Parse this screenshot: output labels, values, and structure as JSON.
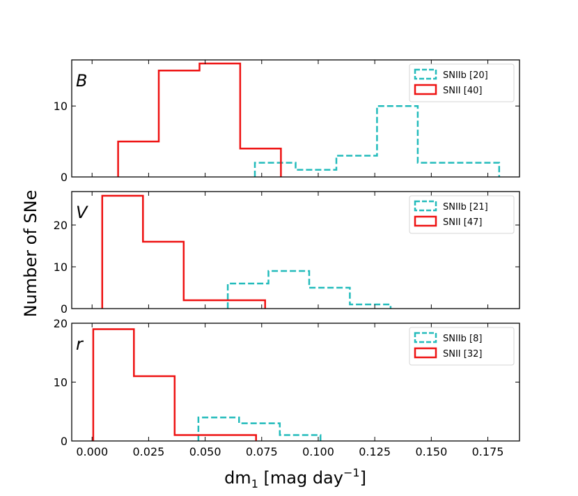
{
  "chart_data": {
    "type": "histogram",
    "xlabel_main": "dm",
    "xlabel_sub": "1",
    "xlabel_unit": " [mag day",
    "xlabel_exp": "−1",
    "xlabel_close": "]",
    "ylabel": "Number of SNe",
    "xlim": [
      -0.009,
      0.189
    ],
    "xticks": [
      0.0,
      0.025,
      0.05,
      0.075,
      0.1,
      0.125,
      0.15,
      0.175
    ],
    "xtick_labels": [
      "0.000",
      "0.025",
      "0.050",
      "0.075",
      "0.100",
      "0.125",
      "0.150",
      "0.175"
    ],
    "colors": {
      "snii": "#ee1111",
      "sniib": "#22bbbb"
    },
    "panels": [
      {
        "band": "B",
        "ylim": [
          0,
          16.5
        ],
        "yticks": [
          0,
          10
        ],
        "ytick_labels": [
          "0",
          "10"
        ],
        "legend_position": "top-right",
        "series": [
          {
            "name": "SNIIb [20]",
            "style": "dashed",
            "color_key": "sniib",
            "edges": [
              0.072,
              0.09,
              0.108,
              0.126,
              0.144,
              0.162,
              0.18
            ],
            "counts": [
              2,
              1,
              3,
              10,
              2,
              2
            ]
          },
          {
            "name": "SNII [40]",
            "style": "solid",
            "color_key": "snii",
            "edges": [
              0.0115,
              0.0295,
              0.0475,
              0.0655,
              0.0835
            ],
            "counts": [
              5,
              15,
              16,
              4
            ]
          }
        ]
      },
      {
        "band": "V",
        "ylim": [
          0,
          28
        ],
        "yticks": [
          0,
          10,
          20
        ],
        "ytick_labels": [
          "0",
          "10",
          "20"
        ],
        "legend_position": "top-right",
        "series": [
          {
            "name": "SNIIb [21]",
            "style": "dashed",
            "color_key": "sniib",
            "edges": [
              0.06,
              0.078,
              0.096,
              0.114,
              0.132
            ],
            "counts": [
              6,
              9,
              5,
              1
            ]
          },
          {
            "name": "SNII [47]",
            "style": "solid",
            "color_key": "snii",
            "edges": [
              0.0045,
              0.0225,
              0.0405,
              0.0585,
              0.0765
            ],
            "counts": [
              27,
              16,
              2,
              2
            ]
          }
        ]
      },
      {
        "band": "r",
        "ylim": [
          0,
          20
        ],
        "yticks": [
          0,
          10,
          20
        ],
        "ytick_labels": [
          "0",
          "10",
          "20"
        ],
        "legend_position": "top-right",
        "series": [
          {
            "name": "SNIIb [8]",
            "style": "dashed",
            "color_key": "sniib",
            "edges": [
              0.047,
              0.065,
              0.083,
              0.101
            ],
            "counts": [
              4,
              3,
              1
            ]
          },
          {
            "name": "SNII [32]",
            "style": "solid",
            "color_key": "snii",
            "edges": [
              0.0005,
              0.0185,
              0.0365,
              0.0545,
              0.0725
            ],
            "counts": [
              19,
              11,
              1,
              1
            ]
          }
        ]
      }
    ]
  }
}
